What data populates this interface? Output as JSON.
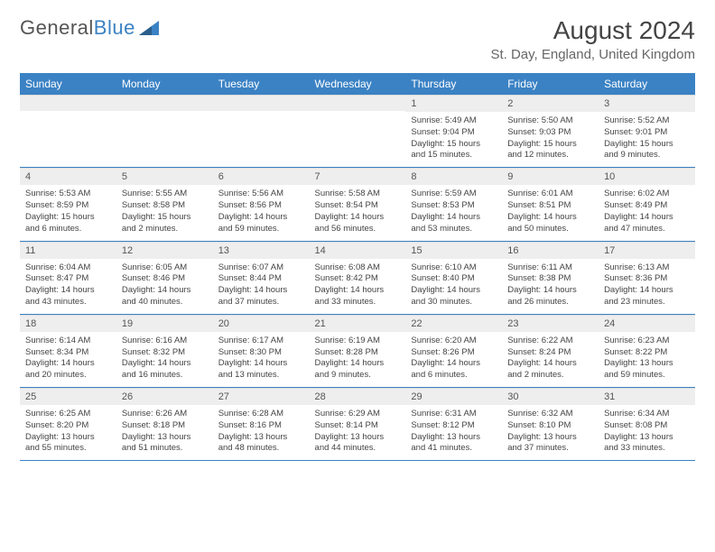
{
  "logo": {
    "text1": "General",
    "text2": "Blue"
  },
  "title": "August 2024",
  "location": "St. Day, England, United Kingdom",
  "colors": {
    "header_bg": "#3b82c4",
    "header_text": "#ffffff",
    "daynum_bg": "#eeeeee",
    "border": "#3b82c4",
    "text": "#444444"
  },
  "typography": {
    "title_fontsize": 28,
    "location_fontsize": 15,
    "dayhead_fontsize": 12,
    "body_fontsize": 9.5
  },
  "day_names": [
    "Sunday",
    "Monday",
    "Tuesday",
    "Wednesday",
    "Thursday",
    "Friday",
    "Saturday"
  ],
  "weeks": [
    [
      null,
      null,
      null,
      null,
      {
        "n": "1",
        "sr": "Sunrise: 5:49 AM",
        "ss": "Sunset: 9:04 PM",
        "dl": "Daylight: 15 hours and 15 minutes."
      },
      {
        "n": "2",
        "sr": "Sunrise: 5:50 AM",
        "ss": "Sunset: 9:03 PM",
        "dl": "Daylight: 15 hours and 12 minutes."
      },
      {
        "n": "3",
        "sr": "Sunrise: 5:52 AM",
        "ss": "Sunset: 9:01 PM",
        "dl": "Daylight: 15 hours and 9 minutes."
      }
    ],
    [
      {
        "n": "4",
        "sr": "Sunrise: 5:53 AM",
        "ss": "Sunset: 8:59 PM",
        "dl": "Daylight: 15 hours and 6 minutes."
      },
      {
        "n": "5",
        "sr": "Sunrise: 5:55 AM",
        "ss": "Sunset: 8:58 PM",
        "dl": "Daylight: 15 hours and 2 minutes."
      },
      {
        "n": "6",
        "sr": "Sunrise: 5:56 AM",
        "ss": "Sunset: 8:56 PM",
        "dl": "Daylight: 14 hours and 59 minutes."
      },
      {
        "n": "7",
        "sr": "Sunrise: 5:58 AM",
        "ss": "Sunset: 8:54 PM",
        "dl": "Daylight: 14 hours and 56 minutes."
      },
      {
        "n": "8",
        "sr": "Sunrise: 5:59 AM",
        "ss": "Sunset: 8:53 PM",
        "dl": "Daylight: 14 hours and 53 minutes."
      },
      {
        "n": "9",
        "sr": "Sunrise: 6:01 AM",
        "ss": "Sunset: 8:51 PM",
        "dl": "Daylight: 14 hours and 50 minutes."
      },
      {
        "n": "10",
        "sr": "Sunrise: 6:02 AM",
        "ss": "Sunset: 8:49 PM",
        "dl": "Daylight: 14 hours and 47 minutes."
      }
    ],
    [
      {
        "n": "11",
        "sr": "Sunrise: 6:04 AM",
        "ss": "Sunset: 8:47 PM",
        "dl": "Daylight: 14 hours and 43 minutes."
      },
      {
        "n": "12",
        "sr": "Sunrise: 6:05 AM",
        "ss": "Sunset: 8:46 PM",
        "dl": "Daylight: 14 hours and 40 minutes."
      },
      {
        "n": "13",
        "sr": "Sunrise: 6:07 AM",
        "ss": "Sunset: 8:44 PM",
        "dl": "Daylight: 14 hours and 37 minutes."
      },
      {
        "n": "14",
        "sr": "Sunrise: 6:08 AM",
        "ss": "Sunset: 8:42 PM",
        "dl": "Daylight: 14 hours and 33 minutes."
      },
      {
        "n": "15",
        "sr": "Sunrise: 6:10 AM",
        "ss": "Sunset: 8:40 PM",
        "dl": "Daylight: 14 hours and 30 minutes."
      },
      {
        "n": "16",
        "sr": "Sunrise: 6:11 AM",
        "ss": "Sunset: 8:38 PM",
        "dl": "Daylight: 14 hours and 26 minutes."
      },
      {
        "n": "17",
        "sr": "Sunrise: 6:13 AM",
        "ss": "Sunset: 8:36 PM",
        "dl": "Daylight: 14 hours and 23 minutes."
      }
    ],
    [
      {
        "n": "18",
        "sr": "Sunrise: 6:14 AM",
        "ss": "Sunset: 8:34 PM",
        "dl": "Daylight: 14 hours and 20 minutes."
      },
      {
        "n": "19",
        "sr": "Sunrise: 6:16 AM",
        "ss": "Sunset: 8:32 PM",
        "dl": "Daylight: 14 hours and 16 minutes."
      },
      {
        "n": "20",
        "sr": "Sunrise: 6:17 AM",
        "ss": "Sunset: 8:30 PM",
        "dl": "Daylight: 14 hours and 13 minutes."
      },
      {
        "n": "21",
        "sr": "Sunrise: 6:19 AM",
        "ss": "Sunset: 8:28 PM",
        "dl": "Daylight: 14 hours and 9 minutes."
      },
      {
        "n": "22",
        "sr": "Sunrise: 6:20 AM",
        "ss": "Sunset: 8:26 PM",
        "dl": "Daylight: 14 hours and 6 minutes."
      },
      {
        "n": "23",
        "sr": "Sunrise: 6:22 AM",
        "ss": "Sunset: 8:24 PM",
        "dl": "Daylight: 14 hours and 2 minutes."
      },
      {
        "n": "24",
        "sr": "Sunrise: 6:23 AM",
        "ss": "Sunset: 8:22 PM",
        "dl": "Daylight: 13 hours and 59 minutes."
      }
    ],
    [
      {
        "n": "25",
        "sr": "Sunrise: 6:25 AM",
        "ss": "Sunset: 8:20 PM",
        "dl": "Daylight: 13 hours and 55 minutes."
      },
      {
        "n": "26",
        "sr": "Sunrise: 6:26 AM",
        "ss": "Sunset: 8:18 PM",
        "dl": "Daylight: 13 hours and 51 minutes."
      },
      {
        "n": "27",
        "sr": "Sunrise: 6:28 AM",
        "ss": "Sunset: 8:16 PM",
        "dl": "Daylight: 13 hours and 48 minutes."
      },
      {
        "n": "28",
        "sr": "Sunrise: 6:29 AM",
        "ss": "Sunset: 8:14 PM",
        "dl": "Daylight: 13 hours and 44 minutes."
      },
      {
        "n": "29",
        "sr": "Sunrise: 6:31 AM",
        "ss": "Sunset: 8:12 PM",
        "dl": "Daylight: 13 hours and 41 minutes."
      },
      {
        "n": "30",
        "sr": "Sunrise: 6:32 AM",
        "ss": "Sunset: 8:10 PM",
        "dl": "Daylight: 13 hours and 37 minutes."
      },
      {
        "n": "31",
        "sr": "Sunrise: 6:34 AM",
        "ss": "Sunset: 8:08 PM",
        "dl": "Daylight: 13 hours and 33 minutes."
      }
    ]
  ]
}
